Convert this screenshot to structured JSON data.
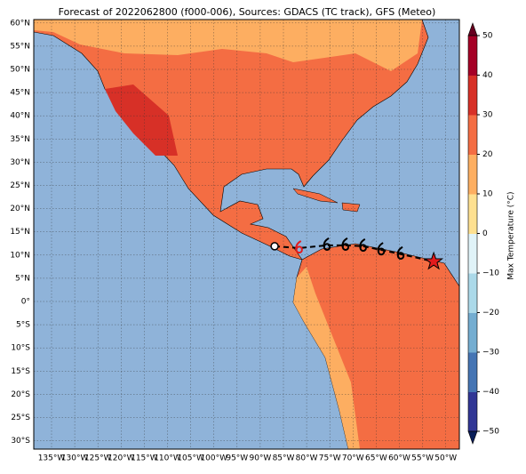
{
  "title": "Forecast of 2022062800 (f000-006), Sources: GDACS (TC track), GFS (Meteo)",
  "map": {
    "lat_ticks": [
      {
        "value": 60,
        "label": "60°N"
      },
      {
        "value": 55,
        "label": "55°N"
      },
      {
        "value": 50,
        "label": "50°N"
      },
      {
        "value": 45,
        "label": "45°N"
      },
      {
        "value": 40,
        "label": "40°N"
      },
      {
        "value": 35,
        "label": "35°N"
      },
      {
        "value": 30,
        "label": "30°N"
      },
      {
        "value": 25,
        "label": "25°N"
      },
      {
        "value": 20,
        "label": "20°N"
      },
      {
        "value": 15,
        "label": "15°N"
      },
      {
        "value": 10,
        "label": "10°N"
      },
      {
        "value": 5,
        "label": "5°N"
      },
      {
        "value": 0,
        "label": "0°"
      },
      {
        "value": -5,
        "label": "5°S"
      },
      {
        "value": -10,
        "label": "10°S"
      },
      {
        "value": -15,
        "label": "15°S"
      },
      {
        "value": -20,
        "label": "20°S"
      },
      {
        "value": -25,
        "label": "25°S"
      },
      {
        "value": -30,
        "label": "30°S"
      }
    ],
    "lon_ticks": [
      {
        "value": -135,
        "label": "135°W"
      },
      {
        "value": -130,
        "label": "130°W"
      },
      {
        "value": -125,
        "label": "125°W"
      },
      {
        "value": -120,
        "label": "120°W"
      },
      {
        "value": -115,
        "label": "115°W"
      },
      {
        "value": -110,
        "label": "110°W"
      },
      {
        "value": -105,
        "label": "105°W"
      },
      {
        "value": -100,
        "label": "100°W"
      },
      {
        "value": -95,
        "label": "95°W"
      },
      {
        "value": -90,
        "label": "90°W"
      },
      {
        "value": -85,
        "label": "85°W"
      },
      {
        "value": -80,
        "label": "80°W"
      },
      {
        "value": -75,
        "label": "75°W"
      },
      {
        "value": -70,
        "label": "70°W"
      },
      {
        "value": -65,
        "label": "65°W"
      },
      {
        "value": -60,
        "label": "60°W"
      },
      {
        "value": -55,
        "label": "55°W"
      },
      {
        "value": -50,
        "label": "50°W"
      }
    ],
    "track": {
      "lon": [
        -86.9,
        -81.6,
        -75.6,
        -71.6,
        -67.8,
        -63.9,
        -59.7,
        -52.6
      ],
      "lat": [
        11.9,
        11.5,
        12.1,
        12.1,
        11.9,
        11.1,
        10.2,
        8.6
      ]
    }
  },
  "colorbar": {
    "label": "Max Temperature (°C)",
    "lim": [
      -50,
      50
    ],
    "ticks": [
      {
        "value": -50,
        "label": "−50"
      },
      {
        "value": -40,
        "label": "−40"
      },
      {
        "value": -30,
        "label": "−30"
      },
      {
        "value": -20,
        "label": "−20"
      },
      {
        "value": -10,
        "label": "−10"
      },
      0,
      10,
      20,
      30,
      40,
      50
    ],
    "colors": [
      "#313695",
      "#4575b4",
      "#74add1",
      "#abd9e9",
      "#e0f3f8",
      "#fee090",
      "#fdae61",
      "#f46d43",
      "#d73027",
      "#a50026"
    ]
  }
}
